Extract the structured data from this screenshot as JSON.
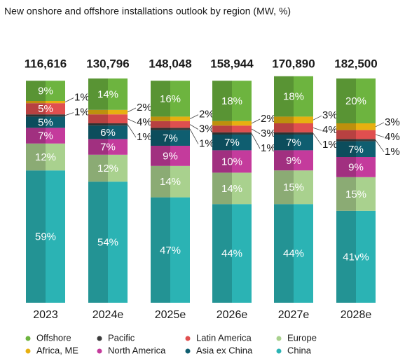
{
  "chart_data": {
    "type": "stacked-column",
    "title": "New onshore and offshore installations outlook by region (MW, %)",
    "categories": [
      "2023",
      "2024e",
      "2025e",
      "2026e",
      "2027e",
      "2028e"
    ],
    "totals": {
      "values": [
        116616,
        130796,
        148048,
        158944,
        170890,
        182500
      ],
      "value_labels": [
        "116,616",
        "130,796",
        "148,048",
        "158,944",
        "170,890",
        "182,500"
      ]
    },
    "series": [
      {
        "name": "China",
        "color": "#2bb3b4",
        "values": [
          59,
          54,
          47,
          44,
          44,
          41
        ],
        "value_labels": [
          "59%",
          "54%",
          "47%",
          "44%",
          "44%",
          "41v%"
        ]
      },
      {
        "name": "Europe",
        "color": "#a9d18e",
        "values": [
          12,
          12,
          14,
          14,
          15,
          15
        ],
        "value_labels": [
          "12%",
          "12%",
          "14%",
          "14%",
          "15%",
          "15%"
        ]
      },
      {
        "name": "North America",
        "color": "#c43b9c",
        "values": [
          7,
          7,
          9,
          10,
          9,
          9
        ],
        "value_labels": [
          "7%",
          "7%",
          "9%",
          "10%",
          "9%",
          "9%"
        ]
      },
      {
        "name": "Asia ex China",
        "color": "#0f5e70",
        "values": [
          5,
          6,
          7,
          7,
          7,
          7
        ],
        "value_labels": [
          "5%",
          "6%",
          "7%",
          "7%",
          "7%",
          "7%"
        ]
      },
      {
        "name": "Pacific",
        "color": "#3b3b3b",
        "values": [
          1,
          1,
          1,
          1,
          1,
          1
        ],
        "value_labels": [
          "1%",
          "1%",
          "1%",
          "1%",
          "1%",
          "1%"
        ]
      },
      {
        "name": "Latin America",
        "color": "#e04f4f",
        "values": [
          5,
          4,
          3,
          3,
          4,
          4
        ],
        "value_labels": [
          "5%",
          "4%",
          "3%",
          "3%",
          "4%",
          "4%"
        ]
      },
      {
        "name": "Africa, ME",
        "color": "#e7b010",
        "values": [
          1,
          2,
          2,
          2,
          3,
          3
        ],
        "value_labels": [
          "1%",
          "2%",
          "2%",
          "2%",
          "3%",
          "3%"
        ]
      },
      {
        "name": "Offshore",
        "color": "#6db43f",
        "values": [
          9,
          14,
          16,
          18,
          18,
          20
        ],
        "value_labels": [
          "9%",
          "14%",
          "16%",
          "18%",
          "18%",
          "20%"
        ]
      }
    ]
  }
}
